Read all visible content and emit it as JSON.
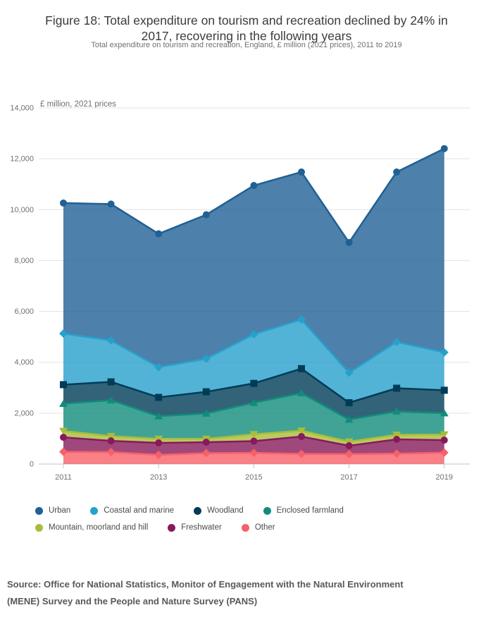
{
  "header": {
    "figure_title_lines": [
      "Figure 18: Total expenditure on tourism and recreation declined by 24% in",
      "2017, recovering in the following years"
    ],
    "subtitle": "Total expenditure on tourism and recreation, England, £ million (2021 prices), 2011 to 2019"
  },
  "chart_data": {
    "type": "area",
    "stacked": true,
    "title": "Figure 18: Total expenditure on tourism and recreation declined by 24% in 2017, recovering in the following years",
    "subtitle": "Total expenditure on tourism and recreation, England, £ million (2021 prices), 2011 to 2019",
    "ylabel": "£ million, 2021 prices",
    "xlabel": "",
    "x": [
      2011,
      2012,
      2013,
      2014,
      2015,
      2016,
      2017,
      2018,
      2019
    ],
    "x_tick_labels": [
      "2011",
      "2013",
      "2015",
      "2017",
      "2019"
    ],
    "y_ticks": [
      0,
      2000,
      4000,
      6000,
      8000,
      10000,
      12000,
      14000
    ],
    "y_tick_labels": [
      "0",
      "2,000",
      "4,000",
      "6,000",
      "8,000",
      "10,000",
      "12,000",
      "14,000"
    ],
    "ylim": [
      0,
      14000
    ],
    "grid": "horizontal",
    "legend_position": "bottom",
    "area_fill_opacity": 0.8,
    "series_values_are": "cumulative stack-top values in £ million (2021 prices), top series = total",
    "series": [
      {
        "name": "Urban",
        "color": "#206095",
        "marker": "circle",
        "stack_top": [
          10260,
          10220,
          9050,
          9800,
          10950,
          11480,
          8710,
          11480,
          12400
        ]
      },
      {
        "name": "Coastal and marine",
        "color": "#27A0CC",
        "marker": "diamond",
        "stack_top": [
          5130,
          4860,
          3810,
          4140,
          5100,
          5680,
          3590,
          4800,
          4390
        ]
      },
      {
        "name": "Woodland",
        "color": "#003C57",
        "marker": "square",
        "stack_top": [
          3120,
          3230,
          2620,
          2840,
          3170,
          3750,
          2410,
          2980,
          2900
        ]
      },
      {
        "name": "Enclosed farmland",
        "color": "#118C7B",
        "marker": "triangle-up",
        "stack_top": [
          2370,
          2510,
          1880,
          1990,
          2410,
          2790,
          1750,
          2070,
          2000
        ]
      },
      {
        "name": "Mountain, moorland and hill",
        "color": "#A8BD3A",
        "marker": "triangle-down",
        "stack_top": [
          1300,
          1100,
          990,
          990,
          1170,
          1310,
          880,
          1150,
          1160
        ]
      },
      {
        "name": "Freshwater",
        "color": "#871A5B",
        "marker": "circle",
        "stack_top": [
          1050,
          910,
          830,
          860,
          900,
          1080,
          720,
          970,
          940
        ]
      },
      {
        "name": "Other",
        "color": "#F66068",
        "marker": "diamond",
        "stack_top": [
          480,
          470,
          360,
          430,
          440,
          400,
          390,
          410,
          450
        ]
      }
    ]
  },
  "style_colors": {
    "gridline": "#e2e2e2",
    "axis_line": "#b6c8d4",
    "tick_label": "#707071",
    "background": "#ffffff"
  },
  "footer": {
    "source_lines": [
      "Source: Office for National Statistics, Monitor of Engagement with the Natural Environment",
      "(MENE) Survey and the People and Nature Survey (PANS)"
    ]
  }
}
